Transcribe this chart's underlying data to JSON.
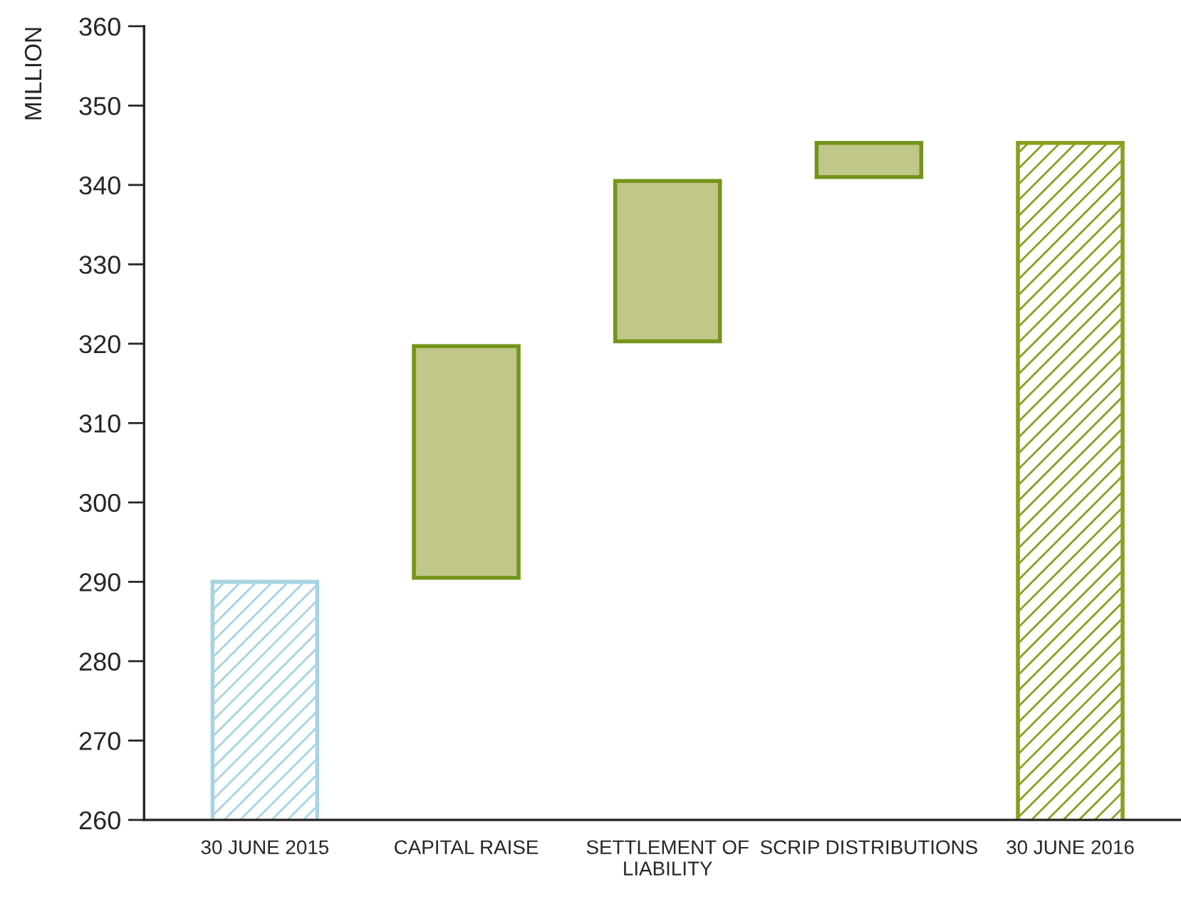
{
  "chart_data": {
    "type": "bar",
    "ylabel": "MILLION",
    "categories": [
      "30 JUNE 2015",
      "CAPITAL RAISE",
      "SETTLEMENT OF\nLIABILITY",
      "SCRIP DISTRIBUTIONS",
      "30 JUNE 2016"
    ],
    "base": [
      0,
      290.5,
      320.3,
      341,
      0
    ],
    "values": [
      290,
      29.2,
      20.2,
      4.3,
      345.3
    ],
    "colors": [
      "#a8d3e4",
      "#c0c788",
      "#c0c788",
      "#c0c788",
      "#88a020"
    ],
    "ylim": [
      260,
      360
    ],
    "yticks": [
      260,
      270,
      280,
      290,
      300,
      310,
      320,
      330,
      340,
      350,
      360
    ],
    "grid": false
  }
}
